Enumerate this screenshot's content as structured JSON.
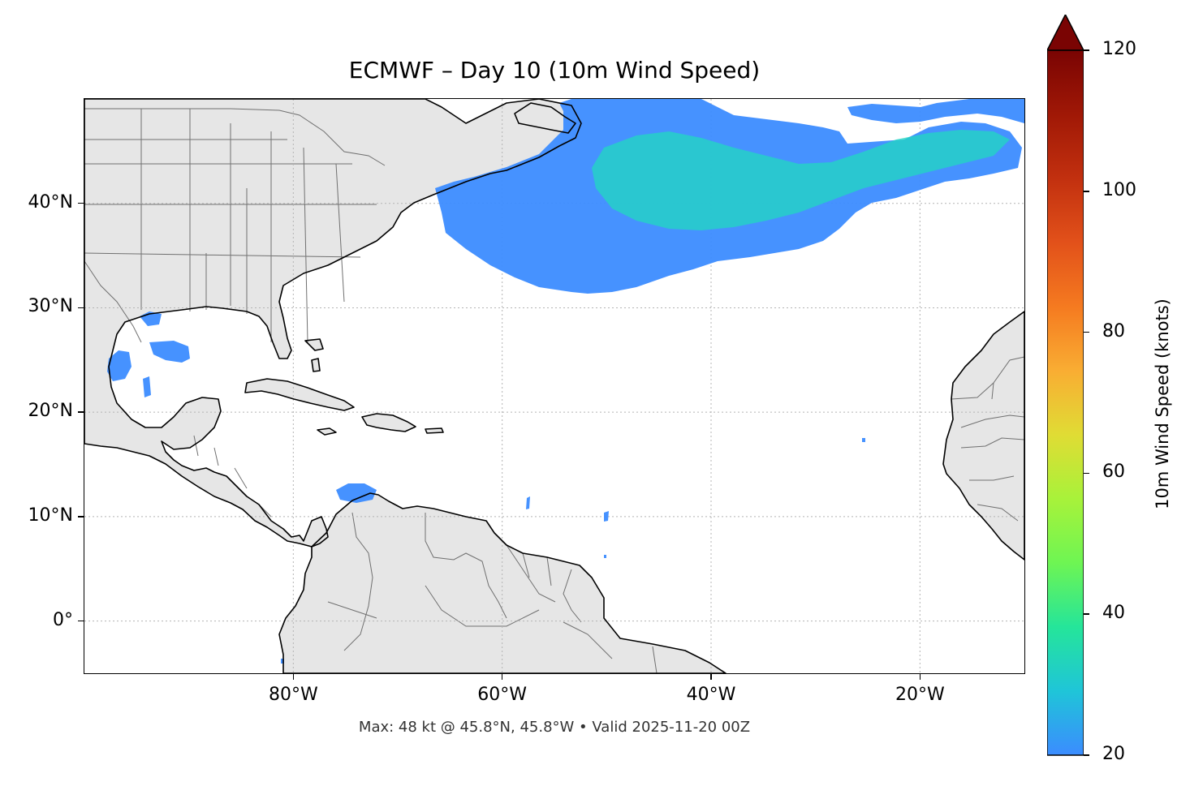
{
  "title": "ECMWF – Day 10 (10m Wind Speed)",
  "caption": "Max: 48 kt @ 45.8°N, 45.8°W • Valid 2025-11-20 00Z",
  "colors": {
    "land": "#e6e6e6",
    "ocean": "#ffffff",
    "coast": "#000000",
    "state_border": "#707070",
    "grid": "#b4b4b4",
    "wind_low": "#3c8cff",
    "wind_mid": "#22d8c0",
    "wind_high_core": "#8ee05a"
  },
  "map": {
    "extent": {
      "lon_min": -100,
      "lon_max": -10,
      "lat_min": -5,
      "lat_max": 50
    },
    "lat_ticks": [
      {
        "value": 40,
        "label": "40°N"
      },
      {
        "value": 30,
        "label": "30°N"
      },
      {
        "value": 20,
        "label": "20°N"
      },
      {
        "value": 10,
        "label": "10°N"
      },
      {
        "value": 0,
        "label": "0°"
      }
    ],
    "lon_ticks": [
      {
        "value": -80,
        "label": "80°W"
      },
      {
        "value": -60,
        "label": "60°W"
      },
      {
        "value": -40,
        "label": "40°W"
      },
      {
        "value": -20,
        "label": "20°W"
      }
    ],
    "gridlines": "dotted"
  },
  "colorbar": {
    "min": 20,
    "max": 120,
    "extend": "max",
    "label": "10m Wind Speed (knots)",
    "ticks": [
      {
        "value": 20,
        "label": "20"
      },
      {
        "value": 40,
        "label": "40"
      },
      {
        "value": 60,
        "label": "60"
      },
      {
        "value": 80,
        "label": "80"
      },
      {
        "value": 100,
        "label": "100"
      },
      {
        "value": 120,
        "label": "120"
      }
    ],
    "stops": [
      "#3b8cff",
      "#1fc5d8",
      "#25e59a",
      "#6ef553",
      "#a8f23a",
      "#e0dc34",
      "#f9ad33",
      "#f57a20",
      "#e2511a",
      "#c2300f",
      "#a01806",
      "#7a0403"
    ]
  }
}
